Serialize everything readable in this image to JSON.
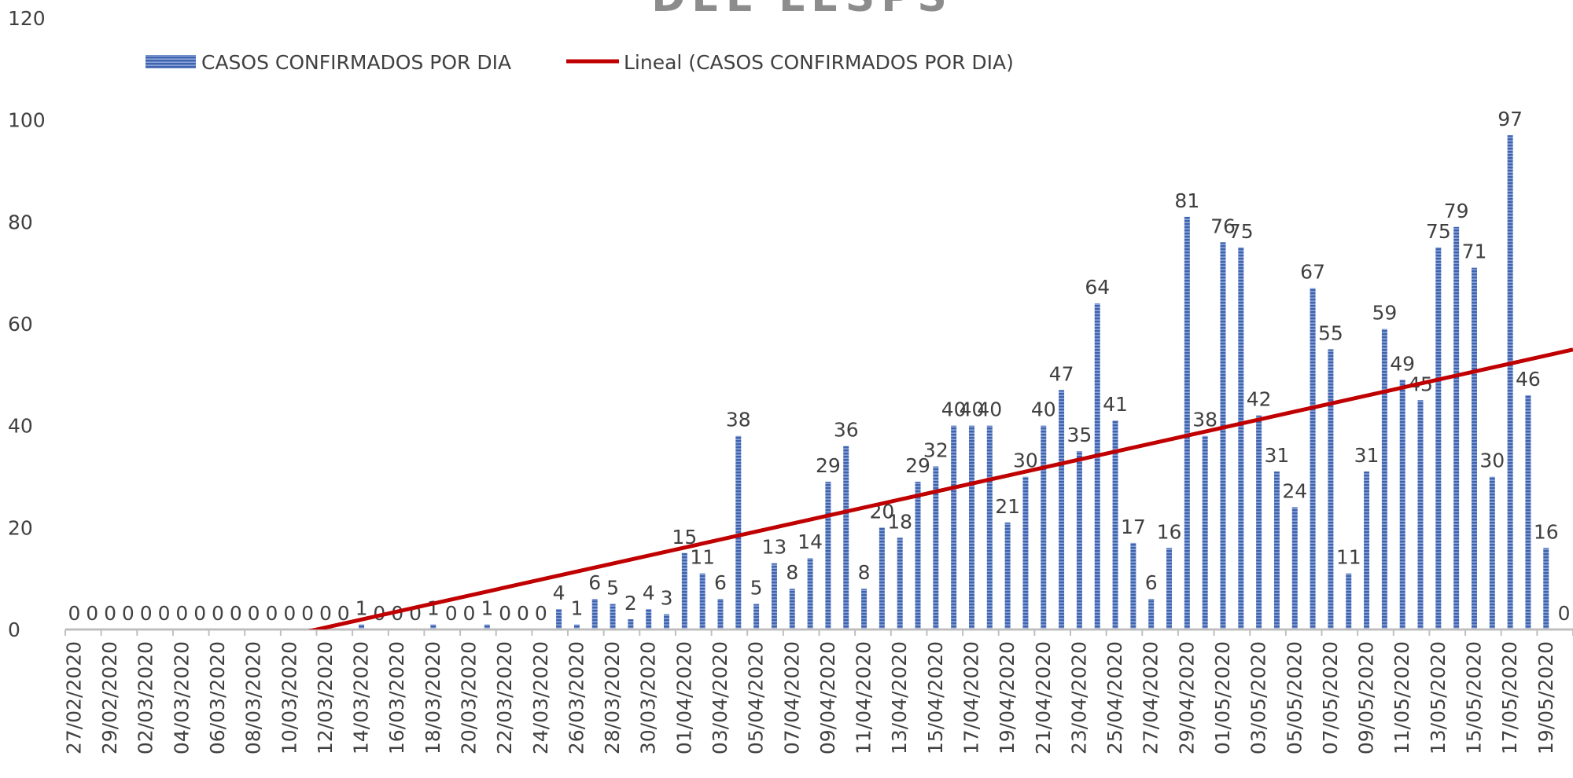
{
  "chart_data": {
    "type": "bar",
    "title": "DEL LESPS",
    "categories": [
      "27/02/2020",
      null,
      "29/02/2020",
      null,
      "02/03/2020",
      null,
      "04/03/2020",
      null,
      "06/03/2020",
      null,
      "08/03/2020",
      null,
      "10/03/2020",
      null,
      "12/03/2020",
      null,
      "14/03/2020",
      null,
      "16/03/2020",
      null,
      "18/03/2020",
      null,
      "20/03/2020",
      null,
      "22/03/2020",
      null,
      "24/03/2020",
      null,
      "26/03/2020",
      null,
      "28/03/2020",
      null,
      "30/03/2020",
      null,
      "01/04/2020",
      null,
      "03/04/2020",
      null,
      "05/04/2020",
      null,
      "07/04/2020",
      null,
      "09/04/2020",
      null,
      "11/04/2020",
      null,
      "13/04/2020",
      null,
      "15/04/2020",
      null,
      "17/04/2020",
      null,
      "19/04/2020",
      null,
      "21/04/2020",
      null,
      "23/04/2020",
      null,
      "25/04/2020",
      null,
      "27/04/2020",
      null,
      "29/04/2020",
      null,
      "01/05/2020",
      null,
      "03/05/2020",
      null,
      "05/05/2020",
      null,
      "07/05/2020",
      null,
      "09/05/2020",
      null,
      "11/05/2020",
      null,
      "13/05/2020",
      null,
      "15/05/2020",
      null,
      "17/05/2020",
      null,
      "19/05/2020",
      null
    ],
    "series": [
      {
        "name": "CASOS CONFIRMADOS POR DIA",
        "color": "#3f63b0",
        "values": [
          0,
          0,
          0,
          0,
          0,
          0,
          0,
          0,
          0,
          0,
          0,
          0,
          0,
          0,
          0,
          0,
          1,
          0,
          0,
          0,
          1,
          0,
          0,
          1,
          0,
          0,
          0,
          4,
          1,
          6,
          5,
          2,
          4,
          3,
          15,
          11,
          6,
          38,
          5,
          13,
          8,
          14,
          29,
          36,
          8,
          20,
          18,
          29,
          32,
          40,
          40,
          40,
          21,
          30,
          40,
          47,
          35,
          64,
          41,
          17,
          6,
          16,
          81,
          38,
          76,
          75,
          42,
          31,
          24,
          67,
          55,
          11,
          31,
          59,
          49,
          45,
          75,
          79,
          71,
          30,
          97,
          46,
          16,
          0
        ]
      }
    ],
    "trendline": {
      "name": "Lineal (CASOS CONFIRMADOS POR DIA)",
      "color": "#c00000"
    },
    "ylim": [
      0,
      120
    ],
    "yticks": [
      0,
      20,
      40,
      60,
      80,
      100,
      120
    ],
    "grid": false
  }
}
